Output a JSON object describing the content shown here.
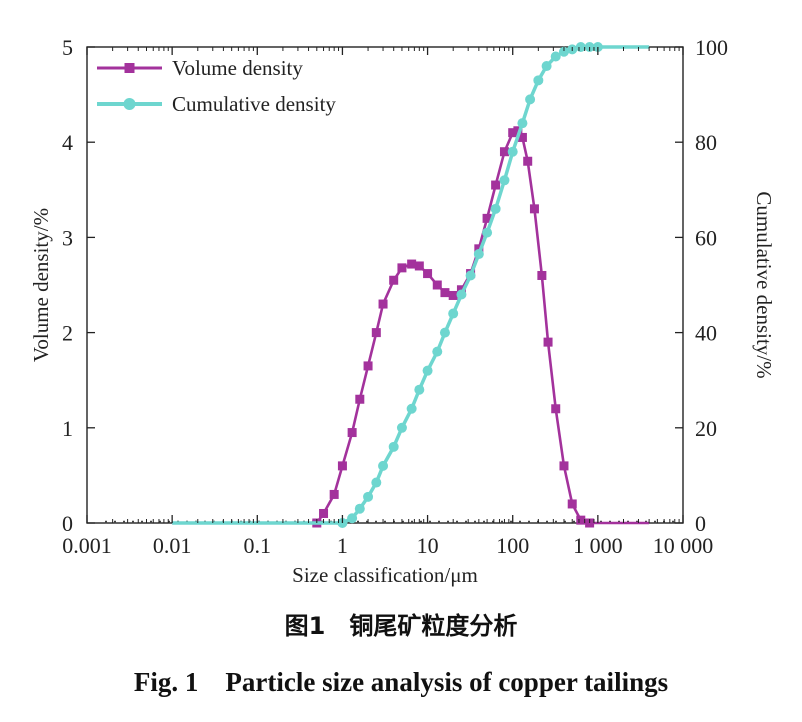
{
  "chart_data": {
    "type": "line",
    "x_scale": "log",
    "xlim": [
      0.001,
      10000
    ],
    "ylim_left": [
      0,
      5
    ],
    "ylim_right": [
      0,
      100
    ],
    "xlabel": "Size classification/μm",
    "ylabel_left": "Volume density/%",
    "ylabel_right": "Cumulative density/%",
    "x_ticks": [
      0.001,
      0.01,
      0.1,
      1,
      10,
      100,
      1000,
      10000
    ],
    "x_tick_labels": [
      "0.001",
      "0.01",
      "0.1",
      "1",
      "10",
      "100",
      "1 000",
      "10 000"
    ],
    "y_left_ticks": [
      0,
      1,
      2,
      3,
      4,
      5
    ],
    "y_left_tick_labels": [
      "0",
      "1",
      "2",
      "3",
      "4",
      "5"
    ],
    "y_right_ticks": [
      0,
      20,
      40,
      60,
      80,
      100
    ],
    "y_right_tick_labels": [
      "0",
      "20",
      "40",
      "60",
      "80",
      "100"
    ],
    "legend_position": "top-left",
    "series": [
      {
        "name": "Volume density",
        "axis": "left",
        "color": "#a3329c",
        "marker": "square",
        "x": [
          0.5,
          0.6,
          0.8,
          1,
          1.3,
          1.6,
          2,
          2.5,
          3,
          4,
          5,
          6.5,
          8,
          10,
          13,
          16,
          20,
          25,
          32,
          40,
          50,
          63,
          80,
          100,
          115,
          130,
          150,
          180,
          220,
          260,
          320,
          400,
          500,
          630,
          800
        ],
        "values": [
          0.0,
          0.1,
          0.3,
          0.6,
          0.95,
          1.3,
          1.65,
          2.0,
          2.3,
          2.55,
          2.68,
          2.72,
          2.7,
          2.62,
          2.5,
          2.42,
          2.39,
          2.45,
          2.62,
          2.88,
          3.2,
          3.55,
          3.9,
          4.1,
          4.12,
          4.05,
          3.8,
          3.3,
          2.6,
          1.9,
          1.2,
          0.6,
          0.2,
          0.03,
          0.0
        ]
      },
      {
        "name": "Cumulative density",
        "axis": "right",
        "color": "#6ed6cf",
        "marker": "circle",
        "x": [
          1,
          1.3,
          1.6,
          2,
          2.5,
          3,
          4,
          5,
          6.5,
          8,
          10,
          13,
          16,
          20,
          25,
          32,
          40,
          50,
          63,
          80,
          100,
          130,
          160,
          200,
          250,
          320,
          400,
          500,
          630,
          800,
          1000
        ],
        "values": [
          0,
          1,
          3,
          5.5,
          8.5,
          12,
          16,
          20,
          24,
          28,
          32,
          36,
          40,
          44,
          48,
          52,
          56.5,
          61,
          66,
          72,
          78,
          84,
          89,
          93,
          96,
          98,
          99,
          99.5,
          100,
          100,
          100
        ]
      }
    ]
  },
  "captions": {
    "cn": "图1　铜尾矿粒度分析",
    "en": "Fig. 1　Particle size analysis of copper tailings"
  }
}
